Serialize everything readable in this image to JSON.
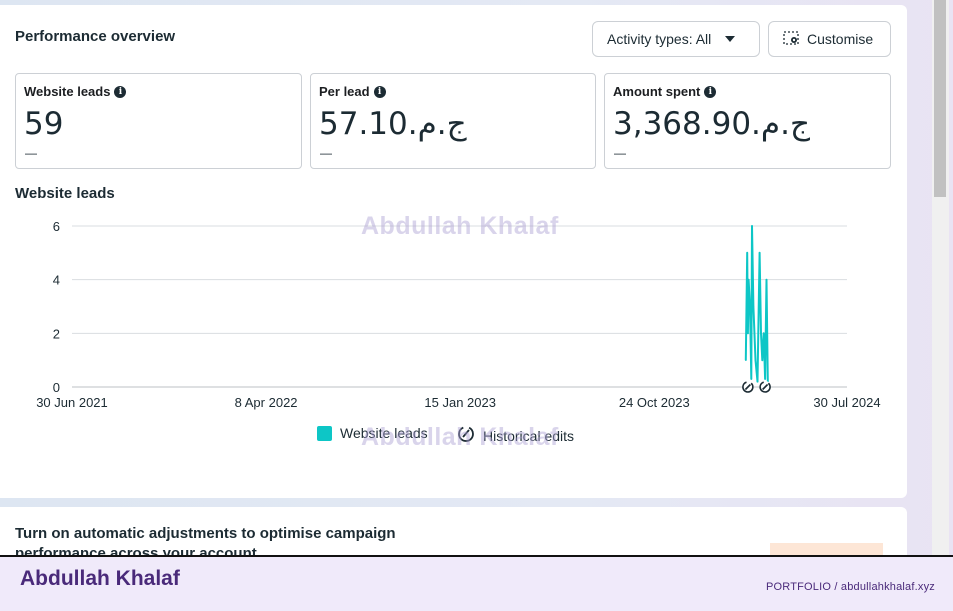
{
  "overview": {
    "title": "Performance overview",
    "activity_button": "Activity types: All",
    "customise_button": "Customise"
  },
  "metrics": [
    {
      "label": "Website leads",
      "value": "59",
      "delta": "—"
    },
    {
      "label": "Per lead",
      "value": "57.10.ج.م",
      "delta": "—"
    },
    {
      "label": "Amount spent",
      "value": "3,368.90.ج.م",
      "delta": "—"
    }
  ],
  "chart": {
    "title": "Website leads",
    "legend_series": "Website leads",
    "legend_edits": "Historical edits"
  },
  "chart_data": {
    "type": "line",
    "title": "Website leads",
    "x_ticks": [
      "30 Jun 2021",
      "8 Apr 2022",
      "15 Jan 2023",
      "24 Oct 2023",
      "30 Jul 2024"
    ],
    "y_ticks": [
      0,
      2,
      4,
      6
    ],
    "ylim": [
      0,
      6
    ],
    "grid": true,
    "legend_position": "bottom",
    "series": [
      {
        "name": "Website leads",
        "color": "#0dc6c6",
        "points": [
          [
            "2024-03-05",
            1
          ],
          [
            "2024-03-07",
            5
          ],
          [
            "2024-03-08",
            2
          ],
          [
            "2024-03-09",
            4
          ],
          [
            "2024-03-11",
            3
          ],
          [
            "2024-03-13",
            0.3
          ],
          [
            "2024-03-14",
            6
          ],
          [
            "2024-03-16",
            3
          ],
          [
            "2024-03-19",
            1
          ],
          [
            "2024-03-22",
            0.2
          ],
          [
            "2024-03-25",
            5
          ],
          [
            "2024-03-27",
            2
          ],
          [
            "2024-03-29",
            1
          ],
          [
            "2024-03-31",
            2
          ],
          [
            "2024-04-02",
            0.3
          ],
          [
            "2024-04-04",
            4
          ],
          [
            "2024-04-06",
            0.2
          ]
        ]
      }
    ],
    "historical_edits": [
      "2024-03-08",
      "2024-04-02"
    ]
  },
  "banner": {
    "text": "Turn on automatic adjustments to optimise campaign performance across your account"
  },
  "footer": {
    "brand": "Abdullah Khalaf",
    "links": "PORTFOLIO  /  abdullahkhalaf.xyz"
  },
  "watermark": "Abdullah Khalaf"
}
